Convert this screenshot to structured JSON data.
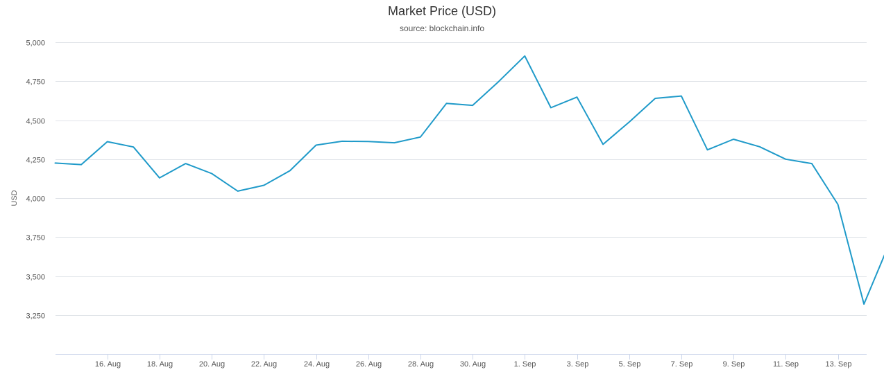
{
  "chart_data": {
    "type": "line",
    "title": "Market Price (USD)",
    "subtitle": "source: blockchain.info",
    "xlabel": "",
    "ylabel": "USD",
    "ylim": [
      3000,
      5000
    ],
    "y_ticks": [
      {
        "value": 3250,
        "label": "3,250"
      },
      {
        "value": 3500,
        "label": "3,500"
      },
      {
        "value": 3750,
        "label": "3,750"
      },
      {
        "value": 4000,
        "label": "4,000"
      },
      {
        "value": 4250,
        "label": "4,250"
      },
      {
        "value": 4500,
        "label": "4,500"
      },
      {
        "value": 4750,
        "label": "4,750"
      },
      {
        "value": 5000,
        "label": "5,000"
      }
    ],
    "x_ticks": [
      "16. Aug",
      "18. Aug",
      "20. Aug",
      "22. Aug",
      "24. Aug",
      "26. Aug",
      "28. Aug",
      "30. Aug",
      "1. Sep",
      "3. Sep",
      "5. Sep",
      "7. Sep",
      "9. Sep",
      "11. Sep",
      "13. Sep"
    ],
    "grid": true,
    "legend": "none",
    "series": [
      {
        "color": "#1f9ac9",
        "points": [
          {
            "x": "14. Aug",
            "y": 4225
          },
          {
            "x": "15. Aug",
            "y": 4215
          },
          {
            "x": "16. Aug",
            "y": 4362
          },
          {
            "x": "17. Aug",
            "y": 4328
          },
          {
            "x": "18. Aug",
            "y": 4130
          },
          {
            "x": "19. Aug",
            "y": 4222
          },
          {
            "x": "20. Aug",
            "y": 4158
          },
          {
            "x": "21. Aug",
            "y": 4045
          },
          {
            "x": "22. Aug",
            "y": 4082
          },
          {
            "x": "23. Aug",
            "y": 4176
          },
          {
            "x": "24. Aug",
            "y": 4340
          },
          {
            "x": "25. Aug",
            "y": 4365
          },
          {
            "x": "26. Aug",
            "y": 4363
          },
          {
            "x": "27. Aug",
            "y": 4355
          },
          {
            "x": "28. Aug",
            "y": 4392
          },
          {
            "x": "29. Aug",
            "y": 4608
          },
          {
            "x": "30. Aug",
            "y": 4595
          },
          {
            "x": "31. Aug",
            "y": 4748
          },
          {
            "x": "1. Sep",
            "y": 4912
          },
          {
            "x": "2. Sep",
            "y": 4580
          },
          {
            "x": "3. Sep",
            "y": 4648
          },
          {
            "x": "4. Sep",
            "y": 4345
          },
          {
            "x": "5. Sep",
            "y": 4488
          },
          {
            "x": "6. Sep",
            "y": 4640
          },
          {
            "x": "7. Sep",
            "y": 4655
          },
          {
            "x": "8. Sep",
            "y": 4310
          },
          {
            "x": "9. Sep",
            "y": 4378
          },
          {
            "x": "10. Sep",
            "y": 4330
          },
          {
            "x": "11. Sep",
            "y": 4250
          },
          {
            "x": "12. Sep",
            "y": 4222
          },
          {
            "x": "13. Sep",
            "y": 3960
          },
          {
            "x": "14. Sep",
            "y": 3320
          },
          {
            "x": "15. Sep",
            "y": 3720
          }
        ]
      }
    ]
  }
}
